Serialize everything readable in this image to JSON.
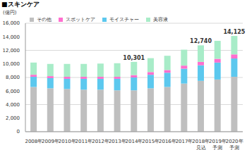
{
  "chart_data": {
    "type": "bar",
    "title": "■スキンケア",
    "y_label": "(億円)",
    "stacked": true,
    "grid": true,
    "legend": "upper left",
    "categories": [
      "2008年",
      "2009年",
      "2010年",
      "2011年",
      "2012年",
      "2013年",
      "2014年",
      "2015年",
      "2016年",
      "2017年",
      "2018年 見込",
      "2019年 予測",
      "2020年 予測"
    ],
    "series": [
      {
        "name": "その他",
        "color": "#bfbfbf",
        "values": [
          6600,
          6400,
          6300,
          6200,
          6200,
          6100,
          6100,
          6400,
          6600,
          7100,
          7500,
          7700,
          8100
        ]
      },
      {
        "name": "モイスチャー",
        "color": "#5cc8ee",
        "values": [
          1500,
          1500,
          1500,
          1600,
          1600,
          1700,
          1900,
          2000,
          2100,
          2200,
          2300,
          2500,
          2700
        ]
      },
      {
        "name": "スポットケア",
        "color": "#ff6fcf",
        "values": [
          300,
          300,
          300,
          300,
          300,
          300,
          350,
          400,
          400,
          450,
          500,
          550,
          600
        ]
      },
      {
        "name": "美容液",
        "color": "#a8ecc8",
        "values": [
          1800,
          1800,
          1900,
          1900,
          1950,
          2000,
          1951,
          2050,
          2100,
          2350,
          2440,
          2650,
          2725
        ]
      }
    ],
    "ylim": [
      0,
      16000
    ],
    "yticks": [
      0,
      {
        "value": 2000,
        "label": "2,000"
      },
      {
        "value": 4000,
        "label": "4,000"
      },
      {
        "value": 6000,
        "label": "6,000"
      },
      {
        "value": 8000,
        "label": "8,000"
      },
      {
        "value": 10000,
        "label": "10,000"
      },
      {
        "value": 12000,
        "label": "12,000"
      },
      {
        "value": 14000,
        "label": "14,000"
      },
      {
        "value": 16000,
        "label": "16,000"
      }
    ],
    "annotations": [
      {
        "category": "2014年",
        "text": "10,301"
      },
      {
        "category": "2018年 見込",
        "text": "12,740"
      },
      {
        "category": "2020年 予測",
        "text": "14,125"
      }
    ]
  }
}
